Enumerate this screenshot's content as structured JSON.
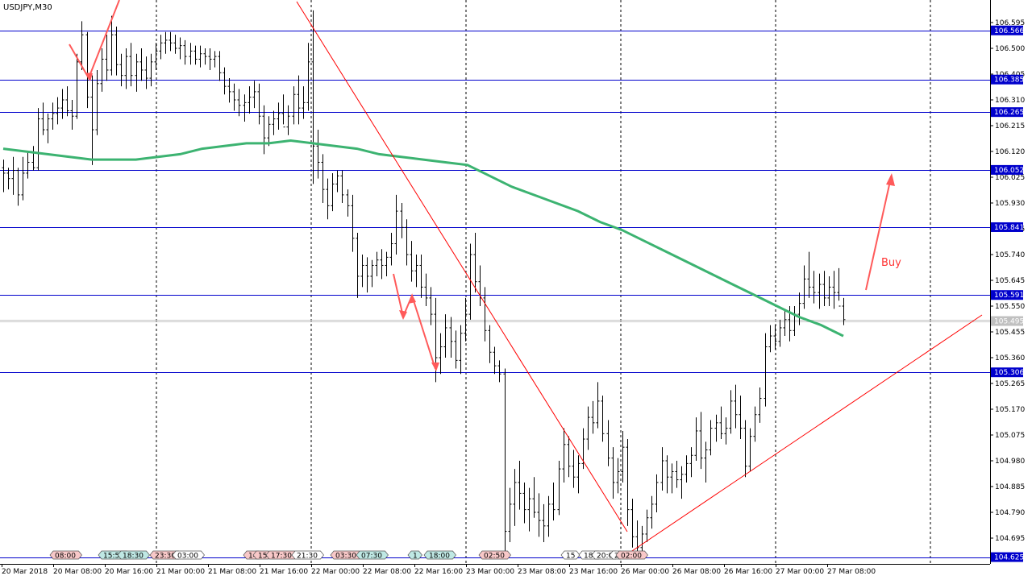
{
  "title": "USDJPY,M30",
  "colors": {
    "background": "#ffffff",
    "candle": "#000000",
    "level": "#0000cc",
    "level_label_bg": "#0000cc",
    "current_label_bg": "#c0c0c0",
    "ma": "#3cb371",
    "trendline": "#ff0000",
    "arrow": "#ff5a5a",
    "grid": "#000000",
    "event_red": "#f8c8c8",
    "event_green": "#bfe8e4",
    "event_grey": "#ffffff"
  },
  "price_axis": {
    "ticks": [
      "106.595",
      "106.500",
      "106.405",
      "106.310",
      "106.215",
      "106.120",
      "106.025",
      "105.930",
      "105.835",
      "105.740",
      "105.645",
      "105.550",
      "105.455",
      "105.360",
      "105.265",
      "105.170",
      "105.075",
      "104.980",
      "104.885",
      "104.790",
      "104.695"
    ]
  },
  "levels": [
    "106.566",
    "106.385",
    "106.265",
    "106.052",
    "105.841",
    "105.591",
    "105.306",
    "104.625"
  ],
  "current_price": "105.495",
  "time_axis": {
    "labels": [
      "20 Mar 2018",
      "20 Mar 08:00",
      "20 Mar 16:00",
      "21 Mar 00:00",
      "21 Mar 08:00",
      "21 Mar 16:00",
      "22 Mar 00:00",
      "22 Mar 08:00",
      "22 Mar 16:00",
      "23 Mar 00:00",
      "23 Mar 08:00",
      "23 Mar 16:00",
      "26 Mar 00:00",
      "26 Mar 08:00",
      "26 Mar 16:00",
      "27 Mar 00:00",
      "27 Mar 08:00"
    ]
  },
  "events": [
    {
      "label": "08:00",
      "kind": "red"
    },
    {
      "label": "15:55",
      "kind": "green"
    },
    {
      "label": "18:30",
      "kind": "green"
    },
    {
      "label": "23:30",
      "kind": "red"
    },
    {
      "label": "03:00",
      "kind": "grey"
    },
    {
      "label": "14",
      "kind": "red"
    },
    {
      "label": "15",
      "kind": "red"
    },
    {
      "label": "17:30",
      "kind": "red"
    },
    {
      "label": "21:30",
      "kind": "grey"
    },
    {
      "label": "03:30",
      "kind": "red"
    },
    {
      "label": "07:30",
      "kind": "green"
    },
    {
      "label": "1",
      "kind": "green"
    },
    {
      "label": "18:00",
      "kind": "green"
    },
    {
      "label": "02:50",
      "kind": "red"
    },
    {
      "label": "15",
      "kind": "grey"
    },
    {
      "label": "18:",
      "kind": "grey"
    },
    {
      "label": "20:0",
      "kind": "grey"
    },
    {
      "label": "2",
      "kind": "grey"
    },
    {
      "label": "02:00",
      "kind": "red"
    }
  ],
  "annotation": {
    "text": "Buy"
  },
  "candles": [
    [
      106.06,
      106.09,
      105.97,
      106.04
    ],
    [
      106.04,
      106.06,
      105.98,
      106.02
    ],
    [
      106.02,
      106.1,
      105.96,
      106.05
    ],
    [
      106.05,
      106.06,
      105.92,
      105.96
    ],
    [
      105.96,
      106.1,
      105.94,
      106.04
    ],
    [
      106.04,
      106.12,
      106.02,
      106.08
    ],
    [
      106.08,
      106.14,
      106.05,
      106.06
    ],
    [
      106.06,
      106.28,
      106.05,
      106.24
    ],
    [
      106.24,
      106.3,
      106.18,
      106.2
    ],
    [
      106.2,
      106.26,
      106.15,
      106.24
    ],
    [
      106.24,
      106.3,
      106.2,
      106.26
    ],
    [
      106.26,
      106.32,
      106.22,
      106.28
    ],
    [
      106.28,
      106.35,
      106.24,
      106.31
    ],
    [
      106.31,
      106.36,
      106.25,
      106.27
    ],
    [
      106.27,
      106.31,
      106.2,
      106.25
    ],
    [
      106.25,
      106.48,
      106.24,
      106.45
    ],
    [
      106.45,
      106.6,
      106.42,
      106.55
    ],
    [
      106.55,
      106.56,
      106.28,
      106.32
    ],
    [
      106.32,
      106.4,
      106.07,
      106.2
    ],
    [
      106.2,
      106.42,
      106.18,
      106.37
    ],
    [
      106.37,
      106.5,
      106.34,
      106.46
    ],
    [
      106.46,
      106.55,
      106.38,
      106.42
    ],
    [
      106.42,
      106.62,
      106.4,
      106.55
    ],
    [
      106.55,
      106.58,
      106.4,
      106.44
    ],
    [
      106.44,
      106.48,
      106.36,
      106.4
    ],
    [
      106.4,
      106.5,
      106.35,
      106.47
    ],
    [
      106.47,
      106.52,
      106.36,
      106.4
    ],
    [
      106.4,
      106.48,
      106.34,
      106.45
    ],
    [
      106.45,
      106.5,
      106.38,
      106.42
    ],
    [
      106.42,
      106.47,
      106.35,
      106.39
    ],
    [
      106.39,
      106.48,
      106.36,
      106.45
    ],
    [
      106.45,
      106.52,
      106.42,
      106.49
    ],
    [
      106.49,
      106.55,
      106.46,
      106.52
    ],
    [
      106.52,
      106.56,
      106.48,
      106.53
    ],
    [
      106.53,
      106.56,
      106.49,
      106.52
    ],
    [
      106.52,
      106.55,
      106.48,
      106.5
    ],
    [
      106.5,
      106.54,
      106.46,
      106.51
    ],
    [
      106.51,
      106.53,
      106.44,
      106.47
    ],
    [
      106.47,
      106.52,
      106.44,
      106.49
    ],
    [
      106.49,
      106.51,
      106.44,
      106.46
    ],
    [
      106.46,
      106.51,
      106.43,
      106.48
    ],
    [
      106.48,
      106.5,
      106.44,
      106.47
    ],
    [
      106.47,
      106.5,
      106.42,
      106.46
    ],
    [
      106.46,
      106.49,
      106.43,
      106.47
    ],
    [
      106.47,
      106.49,
      106.38,
      106.41
    ],
    [
      106.41,
      106.43,
      106.33,
      106.36
    ],
    [
      106.36,
      106.39,
      106.3,
      106.34
    ],
    [
      106.34,
      106.37,
      106.27,
      106.31
    ],
    [
      106.31,
      106.35,
      106.25,
      106.29
    ],
    [
      106.29,
      106.33,
      106.23,
      106.3
    ],
    [
      106.3,
      106.36,
      106.26,
      106.32
    ],
    [
      106.32,
      106.38,
      106.28,
      106.34
    ],
    [
      106.34,
      106.37,
      106.22,
      106.25
    ],
    [
      106.25,
      106.29,
      106.11,
      106.17
    ],
    [
      106.17,
      106.25,
      106.14,
      106.22
    ],
    [
      106.22,
      106.27,
      106.18,
      106.24
    ],
    [
      106.24,
      106.3,
      106.2,
      106.26
    ],
    [
      106.26,
      106.33,
      106.22,
      106.21
    ],
    [
      106.21,
      106.29,
      106.18,
      106.25
    ],
    [
      106.25,
      106.36,
      106.22,
      106.33
    ],
    [
      106.33,
      106.4,
      106.22,
      106.28
    ],
    [
      106.28,
      106.36,
      106.24,
      106.3
    ],
    [
      106.3,
      106.52,
      106.27,
      106.45
    ],
    [
      106.45,
      106.64,
      106.0,
      106.14
    ],
    [
      106.14,
      106.2,
      106.02,
      106.08
    ],
    [
      106.08,
      106.11,
      105.93,
      105.98
    ],
    [
      105.98,
      106.02,
      105.87,
      105.92
    ],
    [
      105.92,
      106.04,
      105.9,
      106.0
    ],
    [
      106.0,
      106.05,
      105.97,
      106.03
    ],
    [
      106.03,
      106.05,
      105.93,
      105.96
    ],
    [
      105.96,
      105.98,
      105.88,
      105.92
    ],
    [
      105.92,
      105.96,
      105.75,
      105.8
    ],
    [
      105.8,
      105.82,
      105.58,
      105.66
    ],
    [
      105.66,
      105.74,
      105.62,
      105.7
    ],
    [
      105.7,
      105.73,
      105.6,
      105.66
    ],
    [
      105.66,
      105.72,
      105.62,
      105.7
    ],
    [
      105.7,
      105.75,
      105.66,
      105.72
    ],
    [
      105.72,
      105.76,
      105.65,
      105.7
    ],
    [
      105.7,
      105.75,
      105.66,
      105.73
    ],
    [
      105.73,
      105.82,
      105.7,
      105.78
    ],
    [
      105.78,
      105.96,
      105.74,
      105.9
    ],
    [
      105.9,
      105.93,
      105.8,
      105.84
    ],
    [
      105.84,
      105.87,
      105.7,
      105.74
    ],
    [
      105.74,
      105.79,
      105.64,
      105.68
    ],
    [
      105.68,
      105.74,
      105.62,
      105.7
    ],
    [
      105.7,
      105.74,
      105.58,
      105.62
    ],
    [
      105.62,
      105.67,
      105.55,
      105.58
    ],
    [
      105.58,
      105.62,
      105.48,
      105.52
    ],
    [
      105.52,
      105.58,
      105.27,
      105.36
    ],
    [
      105.36,
      105.45,
      105.3,
      105.4
    ],
    [
      105.4,
      105.52,
      105.36,
      105.47
    ],
    [
      105.47,
      105.51,
      105.36,
      105.42
    ],
    [
      105.42,
      105.46,
      105.32,
      105.35
    ],
    [
      105.35,
      105.48,
      105.3,
      105.45
    ],
    [
      105.45,
      105.58,
      105.42,
      105.52
    ],
    [
      105.52,
      105.78,
      105.5,
      105.74
    ],
    [
      105.74,
      105.82,
      105.6,
      105.64
    ],
    [
      105.64,
      105.7,
      105.55,
      105.58
    ],
    [
      105.58,
      105.62,
      105.42,
      105.46
    ],
    [
      105.46,
      105.48,
      105.34,
      105.38
    ],
    [
      105.38,
      105.4,
      105.3,
      105.33
    ],
    [
      105.33,
      105.35,
      105.27,
      105.3
    ],
    [
      105.3,
      105.32,
      104.63,
      104.72
    ],
    [
      104.72,
      104.88,
      104.68,
      104.82
    ],
    [
      104.82,
      104.95,
      104.74,
      104.9
    ],
    [
      104.9,
      104.98,
      104.8,
      104.86
    ],
    [
      104.86,
      104.9,
      104.75,
      104.8
    ],
    [
      104.8,
      104.88,
      104.72,
      104.84
    ],
    [
      104.84,
      104.92,
      104.77,
      104.79
    ],
    [
      104.79,
      104.86,
      104.7,
      104.76
    ],
    [
      104.76,
      104.82,
      104.68,
      104.74
    ],
    [
      104.74,
      104.85,
      104.7,
      104.82
    ],
    [
      104.82,
      104.9,
      104.76,
      104.8
    ],
    [
      104.8,
      104.98,
      104.78,
      104.95
    ],
    [
      104.95,
      105.1,
      104.9,
      105.04
    ],
    [
      105.04,
      105.07,
      104.92,
      104.96
    ],
    [
      104.96,
      105.02,
      104.88,
      104.92
    ],
    [
      104.92,
      105.0,
      104.86,
      104.97
    ],
    [
      104.97,
      105.1,
      104.95,
      105.06
    ],
    [
      105.06,
      105.18,
      105.02,
      105.14
    ],
    [
      105.14,
      105.2,
      105.08,
      105.12
    ],
    [
      105.12,
      105.27,
      105.1,
      105.2
    ],
    [
      105.2,
      105.22,
      105.05,
      105.08
    ],
    [
      105.08,
      105.13,
      104.96,
      104.99
    ],
    [
      104.99,
      105.03,
      104.84,
      104.9
    ],
    [
      104.9,
      104.99,
      104.86,
      104.94
    ],
    [
      104.94,
      105.09,
      104.9,
      105.03
    ],
    [
      105.03,
      105.06,
      104.74,
      104.8
    ],
    [
      104.8,
      104.84,
      104.66,
      104.7
    ],
    [
      104.7,
      104.76,
      104.62,
      104.66
    ],
    [
      104.66,
      104.74,
      104.63,
      104.71
    ],
    [
      104.71,
      104.8,
      104.68,
      104.77
    ],
    [
      104.77,
      104.85,
      104.73,
      104.82
    ],
    [
      104.82,
      104.93,
      104.79,
      104.9
    ],
    [
      104.9,
      105.03,
      104.87,
      104.98
    ],
    [
      104.98,
      105.0,
      104.86,
      104.92
    ],
    [
      104.92,
      104.97,
      104.86,
      104.94
    ],
    [
      104.94,
      104.98,
      104.88,
      104.91
    ],
    [
      104.91,
      104.96,
      104.84,
      104.93
    ],
    [
      104.93,
      105.0,
      104.9,
      104.97
    ],
    [
      104.97,
      105.03,
      104.92,
      105.0
    ],
    [
      105.0,
      105.14,
      104.98,
      105.09
    ],
    [
      105.09,
      105.16,
      104.95,
      104.99
    ],
    [
      104.99,
      105.05,
      104.9,
      105.02
    ],
    [
      105.02,
      105.13,
      105.0,
      105.1
    ],
    [
      105.1,
      105.15,
      105.05,
      105.12
    ],
    [
      105.12,
      105.18,
      105.06,
      105.08
    ],
    [
      105.08,
      105.14,
      105.04,
      105.1
    ],
    [
      105.1,
      105.24,
      105.08,
      105.2
    ],
    [
      105.2,
      105.26,
      105.1,
      105.15
    ],
    [
      105.15,
      105.22,
      105.06,
      105.1
    ],
    [
      105.1,
      105.13,
      104.92,
      104.96
    ],
    [
      104.96,
      105.1,
      104.94,
      105.07
    ],
    [
      105.07,
      105.18,
      105.05,
      105.15
    ],
    [
      105.15,
      105.25,
      105.12,
      105.21
    ],
    [
      105.21,
      105.45,
      105.18,
      105.4
    ],
    [
      105.4,
      105.48,
      105.38,
      105.44
    ],
    [
      105.44,
      105.48,
      105.39,
      105.42
    ],
    [
      105.42,
      105.5,
      105.4,
      105.47
    ],
    [
      105.47,
      105.54,
      105.44,
      105.5
    ],
    [
      105.5,
      105.55,
      105.42,
      105.46
    ],
    [
      105.46,
      105.55,
      105.44,
      105.52
    ],
    [
      105.52,
      105.6,
      105.48,
      105.56
    ],
    [
      105.56,
      105.7,
      105.54,
      105.65
    ],
    [
      105.65,
      105.75,
      105.58,
      105.62
    ],
    [
      105.62,
      105.68,
      105.56,
      105.6
    ],
    [
      105.6,
      105.67,
      105.54,
      105.63
    ],
    [
      105.63,
      105.68,
      105.55,
      105.58
    ],
    [
      105.58,
      105.66,
      105.55,
      105.62
    ],
    [
      105.62,
      105.68,
      105.54,
      105.6
    ],
    [
      105.6,
      105.69,
      105.57,
      105.55
    ],
    [
      105.55,
      105.58,
      105.48,
      105.5
    ]
  ],
  "ma_values": [
    106.13,
    106.12,
    106.11,
    106.1,
    106.09,
    106.09,
    106.09,
    106.1,
    106.11,
    106.13,
    106.14,
    106.15,
    106.15,
    106.16,
    106.15,
    106.14,
    106.13,
    106.11,
    106.1,
    106.09,
    106.08,
    106.07,
    106.03,
    105.99,
    105.96,
    105.93,
    105.9,
    105.86,
    105.83,
    105.79,
    105.75,
    105.71,
    105.67,
    105.63,
    105.59,
    105.55,
    105.51,
    105.48,
    105.44
  ]
}
